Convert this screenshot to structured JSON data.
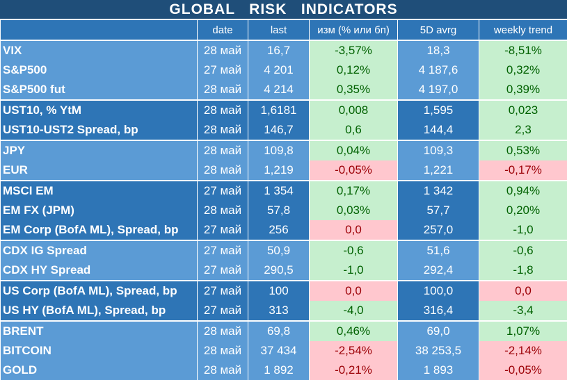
{
  "title": "GLOBAL   RISK   INDICATORS",
  "headers": {
    "name": "",
    "date": "date",
    "last": "last",
    "chg": "изм (% или бп)",
    "avg": "5D avrg",
    "trend": "weekly trend"
  },
  "colors": {
    "title_bg": "#1f4e79",
    "header_bg": "#2e75b6",
    "group_light": "#5b9bd5",
    "group_dark": "#2e75b6",
    "positive_bg": "#c6efce",
    "positive_text": "#006100",
    "negative_bg": "#ffc7ce",
    "negative_text": "#9c0006"
  },
  "rows": [
    {
      "name": "VIX",
      "date": "28 май",
      "last": "16,7",
      "chg": "-3,57%",
      "chg_sign": "pos",
      "avg": "18,3",
      "trend": "-8,51%",
      "trend_sign": "pos",
      "group": "light",
      "group_start": true
    },
    {
      "name": "S&P500",
      "date": "27 май",
      "last": "4 201",
      "chg": "0,12%",
      "chg_sign": "pos",
      "avg": "4 187,6",
      "trend": "0,32%",
      "trend_sign": "pos",
      "group": "light",
      "group_start": false
    },
    {
      "name": "S&P500 fut",
      "date": "28 май",
      "last": "4 214",
      "chg": "0,35%",
      "chg_sign": "pos",
      "avg": "4 197,0",
      "trend": "0,39%",
      "trend_sign": "pos",
      "group": "light",
      "group_start": false
    },
    {
      "name": "UST10, % YtM",
      "date": "28 май",
      "last": "1,6181",
      "chg": "0,008",
      "chg_sign": "pos",
      "avg": "1,595",
      "trend": "0,023",
      "trend_sign": "pos",
      "group": "dark",
      "group_start": true
    },
    {
      "name": "UST10-UST2 Spread, bp",
      "date": "28 май",
      "last": "146,7",
      "chg": "0,6",
      "chg_sign": "pos",
      "avg": "144,4",
      "trend": "2,3",
      "trend_sign": "pos",
      "group": "dark",
      "group_start": false
    },
    {
      "name": "JPY",
      "date": "28 май",
      "last": "109,8",
      "chg": "0,04%",
      "chg_sign": "pos",
      "avg": "109,3",
      "trend": "0,53%",
      "trend_sign": "pos",
      "group": "light",
      "group_start": true
    },
    {
      "name": "EUR",
      "date": "28 май",
      "last": "1,219",
      "chg": "-0,05%",
      "chg_sign": "neg",
      "avg": "1,221",
      "trend": "-0,17%",
      "trend_sign": "neg",
      "group": "light",
      "group_start": false
    },
    {
      "name": "MSCI EM",
      "date": "27 май",
      "last": "1 354",
      "chg": "0,17%",
      "chg_sign": "pos",
      "avg": "1 342",
      "trend": "0,94%",
      "trend_sign": "pos",
      "group": "dark",
      "group_start": true
    },
    {
      "name": "EM FX (JPM)",
      "date": "28 май",
      "last": "57,8",
      "chg": "0,03%",
      "chg_sign": "pos",
      "avg": "57,7",
      "trend": "0,20%",
      "trend_sign": "pos",
      "group": "dark",
      "group_start": false
    },
    {
      "name": "EM Corp (BofA ML), Spread, bp",
      "date": "27 май",
      "last": "256",
      "chg": "0,0",
      "chg_sign": "neg",
      "avg": "257,0",
      "trend": "-1,0",
      "trend_sign": "pos",
      "group": "dark",
      "group_start": false
    },
    {
      "name": "CDX IG Spread",
      "date": "27 май",
      "last": "50,9",
      "chg": "-0,6",
      "chg_sign": "pos",
      "avg": "51,6",
      "trend": "-0,6",
      "trend_sign": "pos",
      "group": "light",
      "group_start": true
    },
    {
      "name": "CDX HY Spread",
      "date": "27 май",
      "last": "290,5",
      "chg": "-1,0",
      "chg_sign": "pos",
      "avg": "292,4",
      "trend": "-1,8",
      "trend_sign": "pos",
      "group": "light",
      "group_start": false
    },
    {
      "name": "US Corp (BofA ML), Spread, bp",
      "date": "27 май",
      "last": "100",
      "chg": "0,0",
      "chg_sign": "neg",
      "avg": "100,0",
      "trend": "0,0",
      "trend_sign": "neg",
      "group": "dark",
      "group_start": true
    },
    {
      "name": "US HY (BofA ML), Spread, bp",
      "date": "27 май",
      "last": "313",
      "chg": "-4,0",
      "chg_sign": "pos",
      "avg": "316,4",
      "trend": "-3,4",
      "trend_sign": "pos",
      "group": "dark",
      "group_start": false
    },
    {
      "name": "BRENT",
      "date": "28 май",
      "last": "69,8",
      "chg": "0,46%",
      "chg_sign": "pos",
      "avg": "69,0",
      "trend": "1,07%",
      "trend_sign": "pos",
      "group": "light",
      "group_start": true
    },
    {
      "name": "BITCOIN",
      "date": "28 май",
      "last": "37 434",
      "chg": "-2,54%",
      "chg_sign": "neg",
      "avg": "38 253,5",
      "trend": "-2,14%",
      "trend_sign": "neg",
      "group": "light",
      "group_start": false
    },
    {
      "name": "GOLD",
      "date": "28 май",
      "last": "1 892",
      "chg": "-0,21%",
      "chg_sign": "neg",
      "avg": "1 893",
      "trend": "-0,05%",
      "trend_sign": "neg",
      "group": "light",
      "group_start": false
    }
  ]
}
